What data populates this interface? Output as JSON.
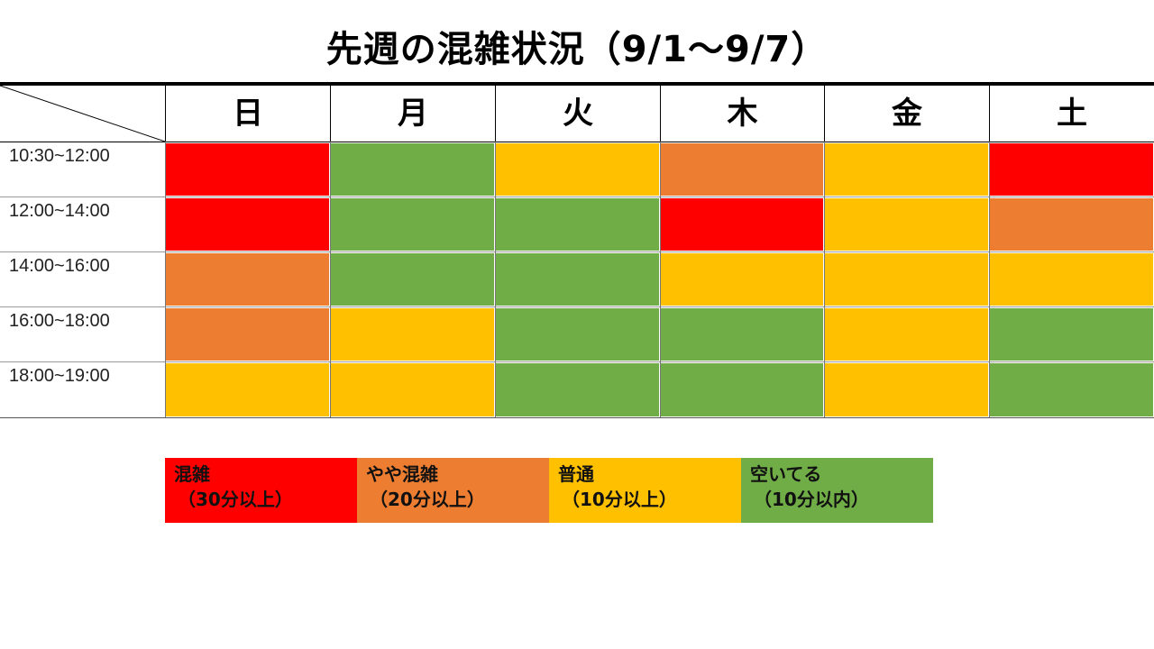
{
  "title": "先週の混雑状況（9/1～9/7）",
  "days": [
    "日",
    "月",
    "火",
    "木",
    "金",
    "土"
  ],
  "times": [
    "10:30~12:00",
    "12:00~14:00",
    "14:00~16:00",
    "16:00~18:00",
    "18:00~19:00"
  ],
  "levels": {
    "red": "#ff0000",
    "orange": "#ed7d31",
    "yellow": "#ffc000",
    "green": "#70ad47"
  },
  "grid": [
    [
      "red",
      "green",
      "yellow",
      "orange",
      "yellow",
      "red"
    ],
    [
      "red",
      "green",
      "green",
      "red",
      "yellow",
      "orange"
    ],
    [
      "orange",
      "green",
      "green",
      "yellow",
      "yellow",
      "yellow"
    ],
    [
      "orange",
      "yellow",
      "green",
      "green",
      "yellow",
      "green"
    ],
    [
      "yellow",
      "yellow",
      "green",
      "green",
      "yellow",
      "green"
    ]
  ],
  "legend": [
    {
      "level": "red",
      "label": "混雑",
      "sub": "（30分以上）"
    },
    {
      "level": "orange",
      "label": "やや混雑",
      "sub": "（20分以上）"
    },
    {
      "level": "yellow",
      "label": "普通",
      "sub": "（10分以上）"
    },
    {
      "level": "green",
      "label": "空いてる",
      "sub": "（10分以内）"
    }
  ]
}
